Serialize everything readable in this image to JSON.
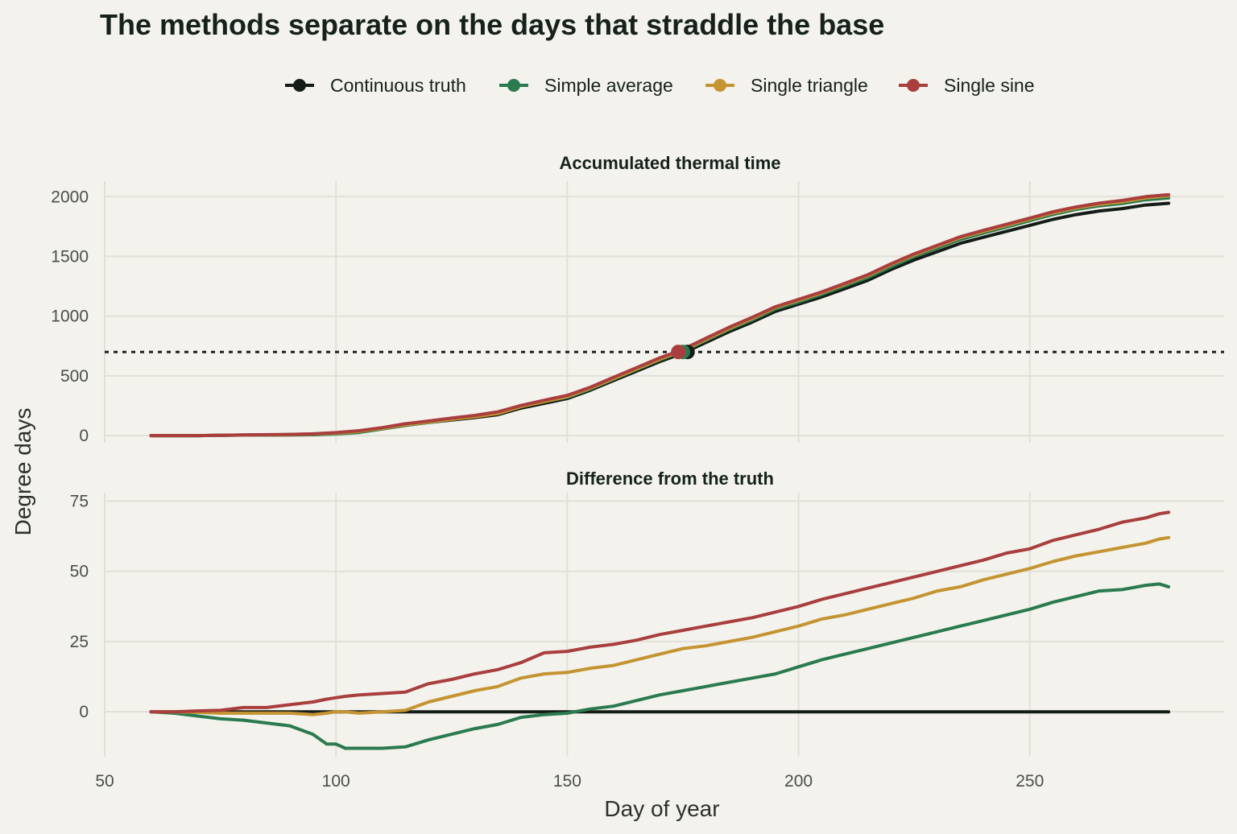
{
  "chart_data": {
    "title": "The methods separate on the days that straddle the base",
    "xlabel": "Day of year",
    "ylabel": "Degree days",
    "legend_position": "top",
    "grid": true,
    "x_ticks": [
      50,
      100,
      150,
      200,
      250
    ],
    "series_meta": [
      {
        "name": "Continuous truth",
        "color": "#141c17"
      },
      {
        "name": "Simple average",
        "color": "#2a7a50"
      },
      {
        "name": "Single triangle",
        "color": "#c59432"
      },
      {
        "name": "Single sine",
        "color": "#a93e3e"
      }
    ],
    "panels": [
      {
        "type": "line",
        "title": "Accumulated thermal time",
        "xlim": [
          50,
          292
        ],
        "ylim": [
          -60,
          2130
        ],
        "y_ticks": [
          0,
          500,
          1000,
          1500,
          2000
        ],
        "x": [
          60,
          70,
          80,
          90,
          95,
          100,
          105,
          110,
          115,
          120,
          125,
          130,
          135,
          140,
          145,
          150,
          155,
          160,
          165,
          170,
          175,
          180,
          185,
          190,
          195,
          200,
          205,
          210,
          215,
          220,
          225,
          230,
          235,
          240,
          245,
          250,
          255,
          260,
          265,
          270,
          275,
          280
        ],
        "threshold": 700,
        "series": [
          {
            "name": "Continuous truth",
            "values": [
              0,
              0,
              5,
              8,
              12,
              20,
              35,
              60,
              90,
              110,
              130,
              150,
              175,
              230,
              270,
              310,
              380,
              460,
              540,
              620,
              690,
              780,
              870,
              950,
              1040,
              1100,
              1160,
              1230,
              1300,
              1390,
              1470,
              1540,
              1610,
              1660,
              1710,
              1760,
              1810,
              1850,
              1880,
              1900,
              1930,
              1945
            ],
            "marker": {
              "x": 176,
              "y": 700
            }
          },
          {
            "name": "Simple average",
            "values": [
              0,
              0,
              4,
              5,
              7,
              14,
              26,
              55,
              85,
              110,
              135,
              160,
              190,
              245,
              285,
              320,
              390,
              472,
              553,
              634,
              705,
              797,
              888,
              968,
              1060,
              1117,
              1182,
              1252,
              1323,
              1413,
              1498,
              1570,
              1642,
              1696,
              1746,
              1799,
              1851,
              1893,
              1923,
              1943,
              1974,
              1989
            ],
            "marker": {
              "x": 175,
              "y": 700
            }
          },
          {
            "name": "Single triangle",
            "values": [
              0,
              0,
              5,
              8,
              12,
              20,
              35,
              60,
              90,
              113,
              136,
              157,
              184,
              242,
              284,
              326,
              396,
              477,
              558,
              640,
              712,
              805,
              897,
              980,
              1072,
              1132,
              1195,
              1267,
              1339,
              1431,
              1513,
              1585,
              1657,
              1709,
              1760,
              1812,
              1864,
              1905,
              1936,
              1957,
              1989,
              2007
            ],
            "marker": {
              "x": 174,
              "y": 700
            }
          },
          {
            "name": "Single sine",
            "values": [
              0,
              0,
              6,
              10,
              15,
              25,
              41,
              67,
              99,
              122,
              146,
              169,
              199,
              252,
              296,
              337,
              405,
              488,
              569,
              651,
              721,
              815,
              907,
              990,
              1079,
              1140,
              1203,
              1274,
              1347,
              1438,
              1521,
              1593,
              1665,
              1718,
              1769,
              1821,
              1873,
              1914,
              1946,
              1968,
              2000,
              2016
            ],
            "marker": {
              "x": 174,
              "y": 700
            }
          }
        ]
      },
      {
        "type": "line",
        "title": "Difference from the truth",
        "xlim": [
          50,
          292
        ],
        "ylim": [
          -16,
          78
        ],
        "y_ticks": [
          0,
          25,
          50,
          75
        ],
        "x": [
          60,
          65,
          70,
          75,
          80,
          85,
          90,
          95,
          98,
          100,
          102,
          105,
          110,
          115,
          120,
          125,
          130,
          135,
          140,
          145,
          150,
          155,
          160,
          165,
          170,
          175,
          180,
          185,
          190,
          195,
          200,
          205,
          210,
          215,
          220,
          225,
          230,
          235,
          240,
          245,
          250,
          255,
          260,
          265,
          270,
          275,
          278,
          280
        ],
        "series": [
          {
            "name": "Continuous truth",
            "values": [
              0,
              0,
              0,
              0,
              0,
              0,
              0,
              0,
              0,
              0,
              0,
              0,
              0,
              0,
              0,
              0,
              0,
              0,
              0,
              0,
              0,
              0,
              0,
              0,
              0,
              0,
              0,
              0,
              0,
              0,
              0,
              0,
              0,
              0,
              0,
              0,
              0,
              0,
              0,
              0,
              0,
              0,
              0,
              0,
              0,
              0,
              0,
              0
            ]
          },
          {
            "name": "Simple average",
            "values": [
              0,
              -0.5,
              -1.5,
              -2.5,
              -3,
              -4,
              -5,
              -8,
              -11.5,
              -11.5,
              -13,
              -13,
              -13,
              -12.5,
              -10,
              -8,
              -6,
              -4.5,
              -2,
              -1,
              -0.5,
              1,
              2,
              4,
              6,
              7.5,
              9,
              10.5,
              12,
              13.5,
              16,
              18.5,
              20.5,
              22.5,
              24.5,
              26.5,
              28.5,
              30.5,
              32.5,
              34.5,
              36.5,
              39,
              41,
              43,
              43.5,
              45,
              45.5,
              44.5
            ]
          },
          {
            "name": "Single triangle",
            "values": [
              0,
              0,
              -0.2,
              -0.5,
              -0.5,
              -0.5,
              -0.5,
              -1,
              -0.5,
              0,
              0,
              -0.5,
              0,
              0.5,
              3.5,
              5.5,
              7.5,
              9,
              12,
              13.5,
              14,
              15.5,
              16.5,
              18.5,
              20.5,
              22.5,
              23.5,
              25,
              26.5,
              28.5,
              30.5,
              33,
              34.5,
              36.5,
              38.5,
              40.5,
              43,
              44.5,
              47,
              49,
              51,
              53.5,
              55.5,
              57,
              58.5,
              60,
              61.5,
              62
            ]
          },
          {
            "name": "Single sine",
            "values": [
              0,
              0,
              0.3,
              0.5,
              1.5,
              1.5,
              2.5,
              3.5,
              4.5,
              5,
              5.5,
              6,
              6.5,
              7,
              10,
              11.5,
              13.5,
              15,
              17.5,
              21,
              21.5,
              23,
              24,
              25.5,
              27.5,
              29,
              30.5,
              32,
              33.5,
              35.5,
              37.5,
              40,
              42,
              44,
              46,
              48,
              50,
              52,
              54,
              56.5,
              58,
              61,
              63,
              65,
              67.5,
              69,
              70.5,
              71
            ]
          }
        ]
      }
    ]
  }
}
